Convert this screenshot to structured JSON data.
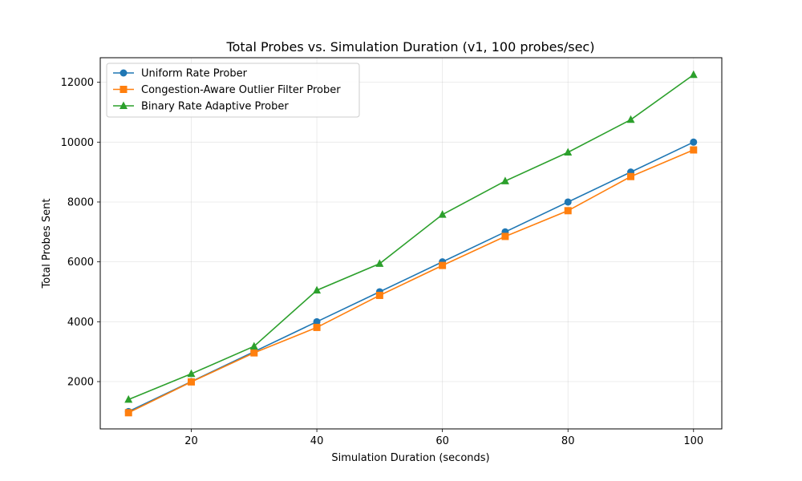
{
  "chart_data": {
    "type": "line",
    "title": "Total Probes vs. Simulation Duration (v1, 100 probes/sec)",
    "xlabel": "Simulation Duration (seconds)",
    "ylabel": "Total Probes Sent",
    "x": [
      10,
      20,
      30,
      40,
      50,
      60,
      70,
      80,
      90,
      100
    ],
    "xlim": [
      5.5,
      104.5
    ],
    "ylim": [
      420,
      12820
    ],
    "xticks": [
      20,
      40,
      60,
      80,
      100
    ],
    "yticks": [
      2000,
      4000,
      6000,
      8000,
      10000,
      12000
    ],
    "grid": true,
    "legend_position": "top-left",
    "series": [
      {
        "name": "Uniform Rate Prober",
        "color": "#1f77b4",
        "marker": "circle",
        "values": [
          1000,
          2000,
          3000,
          4000,
          5000,
          6000,
          7000,
          8000,
          9000,
          10000
        ]
      },
      {
        "name": "Congestion-Aware Outlier Filter Prober",
        "color": "#ff7f0e",
        "marker": "square",
        "values": [
          960,
          1990,
          2960,
          3810,
          4880,
          5880,
          6850,
          7710,
          8850,
          9740
        ]
      },
      {
        "name": "Binary Rate Adaptive Prober",
        "color": "#2ca02c",
        "marker": "triangle",
        "values": [
          1400,
          2260,
          3180,
          5050,
          5940,
          7580,
          8700,
          9660,
          10750,
          12250
        ]
      }
    ]
  }
}
